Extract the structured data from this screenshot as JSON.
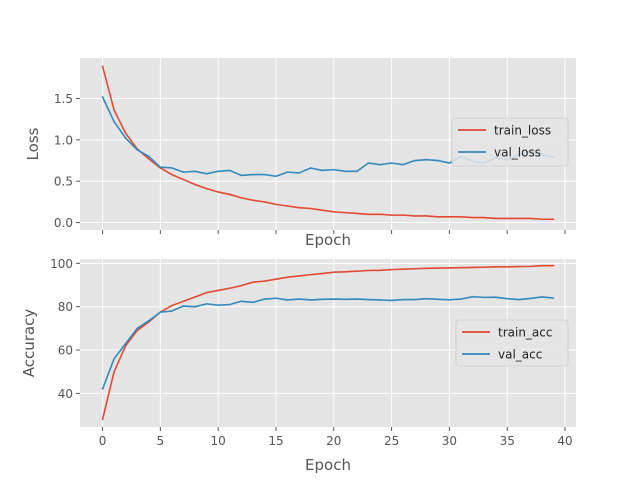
{
  "chart_data": [
    {
      "type": "line",
      "title": "",
      "xlabel": "Epoch",
      "ylabel": "Loss",
      "xlim": [
        -1.95,
        40.95
      ],
      "ylim": [
        -0.09,
        1.99
      ],
      "xticks": [
        0,
        5,
        10,
        15,
        20,
        25,
        30,
        35,
        40
      ],
      "show_x_tick_labels": false,
      "yticks": [
        0.0,
        0.5,
        1.0,
        1.5
      ],
      "ytick_labels": [
        "0.0",
        "0.5",
        "1.0",
        "1.5"
      ],
      "grid": true,
      "legend_position": "center-right",
      "x": [
        0,
        1,
        2,
        3,
        4,
        5,
        6,
        7,
        8,
        9,
        10,
        11,
        12,
        13,
        14,
        15,
        16,
        17,
        18,
        19,
        20,
        21,
        22,
        23,
        24,
        25,
        26,
        27,
        28,
        29,
        30,
        31,
        32,
        33,
        34,
        35,
        36,
        37,
        38,
        39
      ],
      "series": [
        {
          "name": "train_loss",
          "color": "#e24a33",
          "values": [
            1.89,
            1.36,
            1.08,
            0.89,
            0.77,
            0.66,
            0.58,
            0.52,
            0.46,
            0.41,
            0.37,
            0.34,
            0.3,
            0.27,
            0.25,
            0.22,
            0.2,
            0.18,
            0.17,
            0.15,
            0.13,
            0.12,
            0.11,
            0.1,
            0.1,
            0.09,
            0.09,
            0.08,
            0.08,
            0.07,
            0.07,
            0.07,
            0.06,
            0.06,
            0.05,
            0.05,
            0.05,
            0.05,
            0.04,
            0.04
          ]
        },
        {
          "name": "val_loss",
          "color": "#348abd",
          "values": [
            1.52,
            1.22,
            1.02,
            0.88,
            0.8,
            0.67,
            0.66,
            0.61,
            0.62,
            0.59,
            0.62,
            0.63,
            0.57,
            0.58,
            0.58,
            0.56,
            0.61,
            0.6,
            0.66,
            0.63,
            0.64,
            0.62,
            0.62,
            0.72,
            0.7,
            0.72,
            0.7,
            0.75,
            0.76,
            0.75,
            0.72,
            0.8,
            0.74,
            0.72,
            0.78,
            0.76,
            0.82,
            0.86,
            0.82,
            0.79
          ]
        }
      ]
    },
    {
      "type": "line",
      "title": "",
      "xlabel": "Epoch",
      "ylabel": "Accuracy",
      "xlim": [
        -1.95,
        40.95
      ],
      "ylim": [
        24.5,
        102.0
      ],
      "xticks": [
        0,
        5,
        10,
        15,
        20,
        25,
        30,
        35,
        40
      ],
      "xtick_labels": [
        "0",
        "5",
        "10",
        "15",
        "20",
        "25",
        "30",
        "35",
        "40"
      ],
      "show_x_tick_labels": true,
      "yticks": [
        40,
        60,
        80,
        100
      ],
      "ytick_labels": [
        "40",
        "60",
        "80",
        "100"
      ],
      "grid": true,
      "legend_position": "center-right",
      "x": [
        0,
        1,
        2,
        3,
        4,
        5,
        6,
        7,
        8,
        9,
        10,
        11,
        12,
        13,
        14,
        15,
        16,
        17,
        18,
        19,
        20,
        21,
        22,
        23,
        24,
        25,
        26,
        27,
        28,
        29,
        30,
        31,
        32,
        33,
        34,
        35,
        36,
        37,
        38,
        39
      ],
      "series": [
        {
          "name": "train_acc",
          "color": "#e24a33",
          "values": [
            28.0,
            50.0,
            62.0,
            69.0,
            73.0,
            77.5,
            80.5,
            82.5,
            84.5,
            86.5,
            87.5,
            88.5,
            89.7,
            91.3,
            91.8,
            92.7,
            93.6,
            94.2,
            94.8,
            95.3,
            95.9,
            96.1,
            96.4,
            96.7,
            96.8,
            97.1,
            97.3,
            97.5,
            97.7,
            97.8,
            97.9,
            98.0,
            98.1,
            98.2,
            98.4,
            98.4,
            98.5,
            98.6,
            98.9,
            98.9
          ]
        },
        {
          "name": "val_acc",
          "color": "#348abd",
          "values": [
            42.0,
            56.0,
            63.0,
            70.0,
            73.5,
            77.5,
            78.0,
            80.3,
            80.0,
            81.3,
            80.7,
            81.0,
            82.5,
            82.0,
            83.5,
            83.9,
            83.1,
            83.5,
            83.1,
            83.4,
            83.5,
            83.4,
            83.5,
            83.3,
            83.1,
            82.9,
            83.3,
            83.3,
            83.7,
            83.4,
            83.2,
            83.5,
            84.6,
            84.3,
            84.4,
            83.7,
            83.3,
            83.8,
            84.5,
            84.0
          ]
        }
      ]
    }
  ]
}
